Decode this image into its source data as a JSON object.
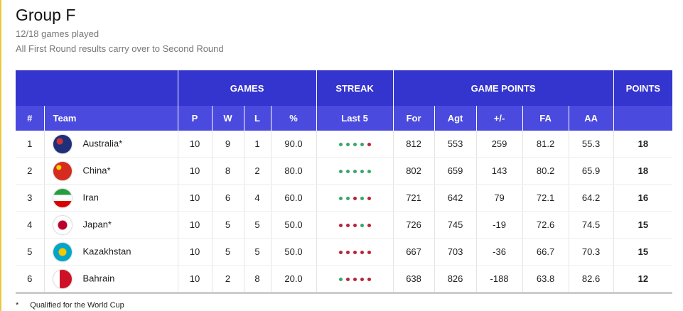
{
  "header": {
    "title": "Group F",
    "subtitle": "12/18 games played",
    "note": "All First Round results carry over to Second Round"
  },
  "table": {
    "group_headers": [
      "GAMES",
      "STREAK",
      "GAME POINTS",
      "POINTS"
    ],
    "columns": [
      "#",
      "Team",
      "P",
      "W",
      "L",
      "%",
      "Last 5",
      "For",
      "Agt",
      "+/-",
      "FA",
      "AA"
    ],
    "rows": [
      [
        "1",
        "Australia*",
        "10",
        "9",
        "1",
        "90.0",
        "812",
        "553",
        "259",
        "81.2",
        "55.3",
        "18"
      ],
      [
        "2",
        "China*",
        "10",
        "8",
        "2",
        "80.0",
        "802",
        "659",
        "143",
        "80.2",
        "65.9",
        "18"
      ],
      [
        "3",
        "Iran",
        "10",
        "6",
        "4",
        "60.0",
        "721",
        "642",
        "79",
        "72.1",
        "64.2",
        "16"
      ],
      [
        "4",
        "Japan*",
        "10",
        "5",
        "5",
        "50.0",
        "726",
        "745",
        "-19",
        "72.6",
        "74.5",
        "15"
      ],
      [
        "5",
        "Kazakhstan",
        "10",
        "5",
        "5",
        "50.0",
        "667",
        "703",
        "-36",
        "66.7",
        "70.3",
        "15"
      ],
      [
        "6",
        "Bahrain",
        "10",
        "2",
        "8",
        "20.0",
        "638",
        "826",
        "-188",
        "63.8",
        "82.6",
        "12"
      ]
    ],
    "streaks": [
      [
        "#3aa66a",
        "#3aa66a",
        "#3aa66a",
        "#3aa66a",
        "#b8243a"
      ],
      [
        "#3aa66a",
        "#3aa66a",
        "#3aa66a",
        "#3aa66a",
        "#3aa66a"
      ],
      [
        "#3aa66a",
        "#3aa66a",
        "#b8243a",
        "#3aa66a",
        "#b8243a"
      ],
      [
        "#b8243a",
        "#b8243a",
        "#b8243a",
        "#3aa66a",
        "#b8243a"
      ],
      [
        "#b8243a",
        "#b8243a",
        "#b8243a",
        "#b8243a",
        "#b8243a"
      ],
      [
        "#3aa66a",
        "#b8243a",
        "#b8243a",
        "#b8243a",
        "#b8243a"
      ]
    ]
  },
  "footer": {
    "symbol": "*",
    "text": "Qualified for the World Cup"
  }
}
